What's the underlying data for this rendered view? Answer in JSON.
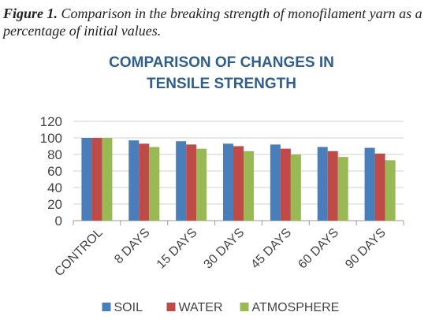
{
  "figure": {
    "label": "Figure 1.",
    "caption": "Comparison in the breaking strength of monofilament yarn as a percentage of initial values."
  },
  "chart_data": {
    "type": "bar",
    "title_lines": [
      "COMPARISON OF CHANGES IN",
      "TENSILE STRENGTH"
    ],
    "categories": [
      "CONTROL",
      "8 DAYS",
      "15 DAYS",
      "30 DAYS",
      "45 DAYS",
      "60 DAYS",
      "90 DAYS"
    ],
    "series": [
      {
        "name": "SOIL",
        "color": "#4a7ebb",
        "values": [
          100,
          97,
          96,
          93,
          92,
          89,
          88
        ]
      },
      {
        "name": "WATER",
        "color": "#be4b48",
        "values": [
          100,
          93,
          92,
          90,
          87,
          84,
          81
        ]
      },
      {
        "name": "ATMOSPHERE",
        "color": "#98b954",
        "values": [
          100,
          89,
          87,
          84,
          80,
          77,
          73
        ]
      }
    ],
    "ylim": [
      0,
      120
    ],
    "yticks": [
      0,
      20,
      40,
      60,
      80,
      100,
      120
    ],
    "grid": true,
    "legend": "bottom"
  }
}
